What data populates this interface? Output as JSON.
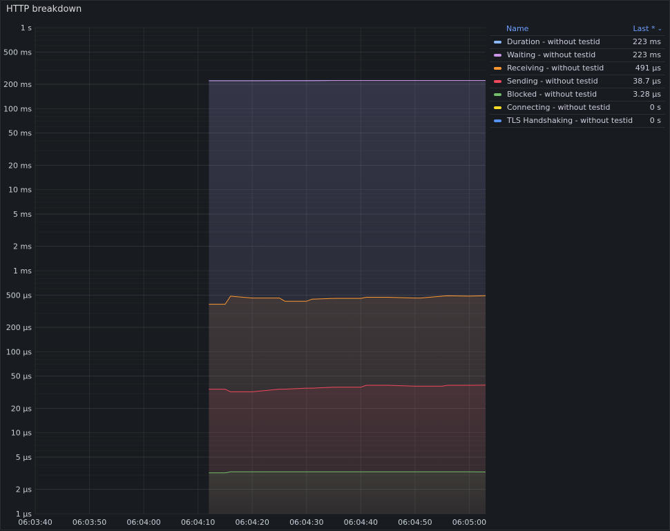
{
  "panel": {
    "title": "HTTP breakdown"
  },
  "legend": {
    "header_name": "Name",
    "header_last": "Last *",
    "rows": [
      {
        "name": "Duration - without testid",
        "value": "223 ms",
        "color": "#8ab8ff"
      },
      {
        "name": "Waiting - without testid",
        "value": "223 ms",
        "color": "#ca95e5"
      },
      {
        "name": "Receiving - without testid",
        "value": "491 µs",
        "color": "#ff9830"
      },
      {
        "name": "Sending - without testid",
        "value": "38.7 µs",
        "color": "#f2495c"
      },
      {
        "name": "Blocked - without testid",
        "value": "3.28 µs",
        "color": "#73bf69"
      },
      {
        "name": "Connecting - without testid",
        "value": "0 s",
        "color": "#fade2a"
      },
      {
        "name": "TLS Handshaking - without testid",
        "value": "0 s",
        "color": "#5794f2"
      }
    ]
  },
  "chart_data": {
    "type": "line",
    "y_scale": "log",
    "y_unit": "seconds",
    "y_ticks": [
      {
        "v": 1,
        "label": "1 s"
      },
      {
        "v": 0.5,
        "label": "500 ms"
      },
      {
        "v": 0.2,
        "label": "200 ms"
      },
      {
        "v": 0.1,
        "label": "100 ms"
      },
      {
        "v": 0.05,
        "label": "50 ms"
      },
      {
        "v": 0.02,
        "label": "20 ms"
      },
      {
        "v": 0.01,
        "label": "10 ms"
      },
      {
        "v": 0.005,
        "label": "5 ms"
      },
      {
        "v": 0.002,
        "label": "2 ms"
      },
      {
        "v": 0.001,
        "label": "1 ms"
      },
      {
        "v": 0.0005,
        "label": "500 µs"
      },
      {
        "v": 0.0002,
        "label": "200 µs"
      },
      {
        "v": 0.0001,
        "label": "100 µs"
      },
      {
        "v": 5e-05,
        "label": "50 µs"
      },
      {
        "v": 2e-05,
        "label": "20 µs"
      },
      {
        "v": 1e-05,
        "label": "10 µs"
      },
      {
        "v": 5e-06,
        "label": "5 µs"
      },
      {
        "v": 2e-06,
        "label": "2 µs"
      },
      {
        "v": 1e-06,
        "label": "1 µs"
      }
    ],
    "x_ticks": [
      "06:03:40",
      "06:03:50",
      "06:04:00",
      "06:04:10",
      "06:04:20",
      "06:04:30",
      "06:04:40",
      "06:04:50",
      "06:05:00"
    ],
    "x_range": [
      "06:03:40",
      "06:05:03"
    ],
    "x": [
      "06:04:12",
      "06:04:15",
      "06:04:16",
      "06:04:20",
      "06:04:25",
      "06:04:26",
      "06:04:30",
      "06:04:31",
      "06:04:35",
      "06:04:40",
      "06:04:41",
      "06:04:45",
      "06:04:50",
      "06:04:51",
      "06:04:55",
      "06:04:56",
      "06:05:00",
      "06:05:03"
    ],
    "series": [
      {
        "name": "Duration - without testid",
        "color": "#8ab8ff",
        "values": [
          0.221,
          0.221,
          0.221,
          0.221,
          0.222,
          0.222,
          0.222,
          0.222,
          0.223,
          0.223,
          0.223,
          0.223,
          0.223,
          0.223,
          0.223,
          0.223,
          0.223,
          0.223
        ]
      },
      {
        "name": "Waiting - without testid",
        "color": "#ca95e5",
        "values": [
          0.221,
          0.221,
          0.221,
          0.221,
          0.222,
          0.222,
          0.222,
          0.222,
          0.223,
          0.223,
          0.223,
          0.223,
          0.223,
          0.223,
          0.223,
          0.223,
          0.223,
          0.223
        ]
      },
      {
        "name": "Receiving - without testid",
        "color": "#ff9830",
        "values": [
          0.000385,
          0.000385,
          0.000485,
          0.00046,
          0.00046,
          0.00042,
          0.00042,
          0.000445,
          0.000455,
          0.000455,
          0.00047,
          0.00047,
          0.00046,
          0.00046,
          0.000485,
          0.00049,
          0.000485,
          0.000491
        ]
      },
      {
        "name": "Sending - without testid",
        "color": "#f2495c",
        "values": [
          3.45e-05,
          3.45e-05,
          3.2e-05,
          3.2e-05,
          3.45e-05,
          3.45e-05,
          3.55e-05,
          3.55e-05,
          3.65e-05,
          3.65e-05,
          3.85e-05,
          3.85e-05,
          3.75e-05,
          3.75e-05,
          3.75e-05,
          3.85e-05,
          3.85e-05,
          3.87e-05
        ]
      },
      {
        "name": "Blocked - without testid",
        "color": "#73bf69",
        "values": [
          3.2e-06,
          3.2e-06,
          3.3e-06,
          3.3e-06,
          3.3e-06,
          3.3e-06,
          3.3e-06,
          3.3e-06,
          3.3e-06,
          3.3e-06,
          3.3e-06,
          3.3e-06,
          3.3e-06,
          3.3e-06,
          3.3e-06,
          3.3e-06,
          3.3e-06,
          3.28e-06
        ]
      }
    ]
  }
}
